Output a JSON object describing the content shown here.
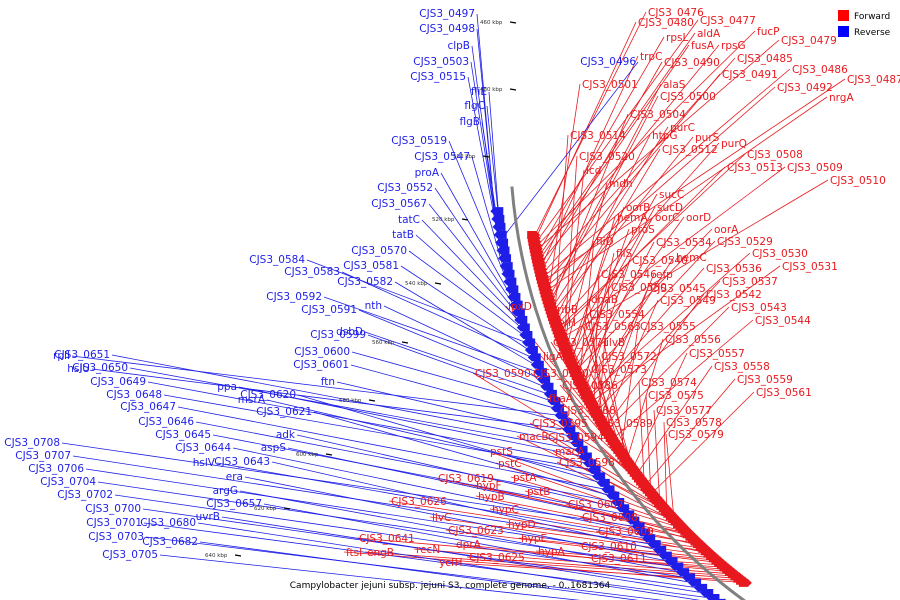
{
  "caption": "Campylobacter jejuni subsp. jejuni S3, complete genome. - 0..1681364",
  "legend": [
    {
      "label": "Forward",
      "color": "#ff0000"
    },
    {
      "label": "Reverse",
      "color": "#0000ff"
    }
  ],
  "colors": {
    "forward": "#e8191e",
    "reverse": "#1e1ee8",
    "backbone": "#808080"
  },
  "ticks": [
    "460 kbp",
    "480 kbp",
    "500 kbp",
    "520 kbp",
    "540 kbp",
    "560 kbp",
    "580 kbp",
    "600 kbp",
    "620 kbp",
    "640 kbp"
  ],
  "forward_labels": [
    "CJS3_0476",
    "CJS3_0480",
    "CJS3_0477",
    "fucP",
    "CJS3_0479",
    "rpsL",
    "aldA",
    "fusA",
    "rpsG",
    "trpC",
    "CJS3_0490",
    "CJS3_0485",
    "CJS3_0486",
    "CJS3_0487",
    "CJS3_0491",
    "CJS3_0492",
    "nrgA",
    "CJS3_0501",
    "alaS",
    "CJS3_0500",
    "CJS3_0504",
    "purC",
    "purS",
    "CJS3_0514",
    "htpG",
    "CJS3_0512",
    "purQ",
    "CJS3_0508",
    "CJS3_0513",
    "CJS3_0509",
    "CJS3_0510",
    "CJS3_0520",
    "icd",
    "mdh",
    "sucC",
    "oorB",
    "sucD",
    "hemA",
    "oorC",
    "oorD",
    "oorA",
    "proS",
    "fliD",
    "CJS3_0534",
    "CJS3_0529",
    "fliS",
    "CJS3_0540",
    "hemC",
    "CJS3_0530",
    "CJS3_0536",
    "CJS3_0531",
    "CJS3_0546",
    "efp",
    "CJS3_0537",
    "CJS3_0550",
    "CJS3_0545",
    "dnaB",
    "CJS3_0549",
    "CJS3_0542",
    "CJS3_0543",
    "ribB",
    "CJS3_0554",
    "CJS3_0544",
    "lpxD",
    "ilvH",
    "CJS3_0563",
    "CJS3_0555",
    "CJS3_0571",
    "ilvB",
    "CJS3_0556",
    "ligA",
    "CJS3_0572",
    "CJS3_0557",
    "CJS3_0573",
    "CJS3_0558",
    "CJS3_0590",
    "CJS3_0580",
    "CJS3_0574",
    "CJS3_0559",
    "CJS3_0586",
    "CJS3_0575",
    "CJS3_0561",
    "fbaA",
    "CJS3_0588",
    "CJS3_0577",
    "CJS3_0595",
    "CJS3_0589",
    "CJS3_0578",
    "macB",
    "CJS3_0594",
    "CJS3_0579",
    "macA",
    "pstS",
    "CJS3_0598",
    "pstC",
    "pstA",
    "CJS3_0619",
    "hypF",
    "pstB",
    "hypB",
    "CJS3_0607",
    "hypC",
    "CJS3_0608",
    "CJS3_0626",
    "hypD",
    "CJS3_0609",
    "ilvC",
    "hypE",
    "CJS3_0610",
    "CJS3_0623",
    "hypA",
    "CJS3_0611",
    "CJS3_0641",
    "dprA",
    "recN",
    "CJS3_0625",
    "engB",
    "ycfH",
    "ftsI"
  ],
  "reverse_labels": [
    "CJS3_0497",
    "CJS3_0498",
    "clpB",
    "CJS3_0503",
    "CJS3_0496",
    "CJS3_0515",
    "fliE",
    "flgC",
    "flgB",
    "CJS3_0519",
    "CJS3_0547",
    "proA",
    "CJS3_0552",
    "CJS3_0567",
    "tatC",
    "tatB",
    "CJS3_0570",
    "CJS3_0584",
    "CJS3_0581",
    "CJS3_0583",
    "CJS3_0582",
    "CJS3_0592",
    "nth",
    "CJS3_0591",
    "dsbD",
    "CJS3_0599",
    "CJS3_0600",
    "rplI",
    "CJS3_0601",
    "hslU",
    "ftn",
    "CJS3_0651",
    "CJS3_0650",
    "ppa",
    "CJS3_0649",
    "CJS3_0648",
    "msrA",
    "CJS3_0620",
    "CJS3_0647",
    "CJS3_0621",
    "CJS3_0646",
    "adk",
    "CJS3_0645",
    "aspS",
    "CJS3_0708",
    "CJS3_0644",
    "hslV",
    "CJS3_0707",
    "CJS3_0643",
    "CJS3_0706",
    "era",
    "CJS3_0704",
    "argG",
    "CJS3_0702",
    "CJS3_0657",
    "CJS3_0700",
    "uvrB",
    "CJS3_0701",
    "CJS3_0680",
    "CJS3_0703",
    "CJS3_0682",
    "CJS3_0705"
  ]
}
